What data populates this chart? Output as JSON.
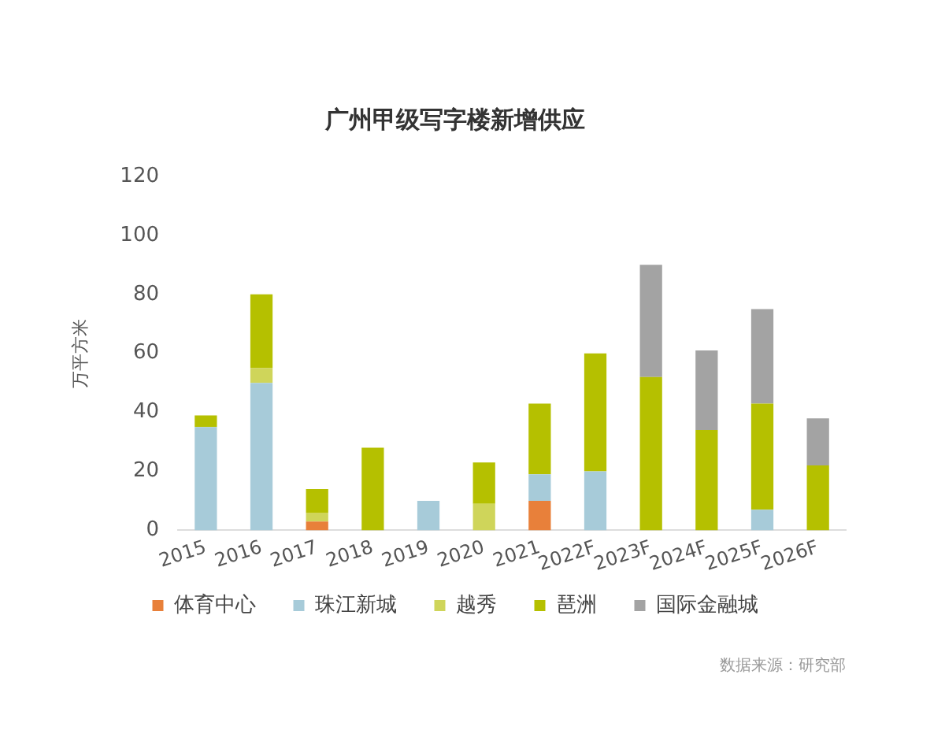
{
  "chart_data": {
    "type": "bar",
    "title": "广州甲级写字楼新增供应",
    "ylabel": "万平方米",
    "stacked": true,
    "grid": false,
    "legend": "bottom",
    "marker": "square",
    "categories": [
      "2015",
      "2016",
      "2017",
      "2018",
      "2019",
      "2020",
      "2021",
      "2022F",
      "2023F",
      "2024F",
      "2025F",
      "2026F"
    ],
    "series": [
      {
        "name": "体育中心",
        "color": "#e8803a",
        "values": [
          null,
          null,
          3,
          null,
          null,
          null,
          10,
          null,
          null,
          null,
          null,
          null
        ]
      },
      {
        "name": "珠江新城",
        "color": "#a7cbd9",
        "values": [
          35,
          50,
          null,
          null,
          10,
          null,
          9,
          20,
          null,
          null,
          7,
          null
        ]
      },
      {
        "name": "越秀",
        "color": "#cfd55a",
        "values": [
          null,
          5,
          3,
          null,
          null,
          9,
          null,
          null,
          null,
          null,
          null,
          null
        ]
      },
      {
        "name": "琶洲",
        "color": "#b5c000",
        "values": [
          4,
          25,
          8,
          28,
          null,
          14,
          24,
          40,
          52,
          34,
          36,
          22
        ]
      },
      {
        "name": "国际金融城",
        "color": "#a3a3a3",
        "values": [
          null,
          null,
          null,
          null,
          null,
          null,
          null,
          null,
          38,
          27,
          32,
          16
        ]
      }
    ],
    "ylim": [
      0,
      120
    ],
    "yticks": [
      0,
      20,
      40,
      60,
      80,
      100,
      120
    ],
    "annotations": [
      "数据来源：研究部"
    ]
  }
}
